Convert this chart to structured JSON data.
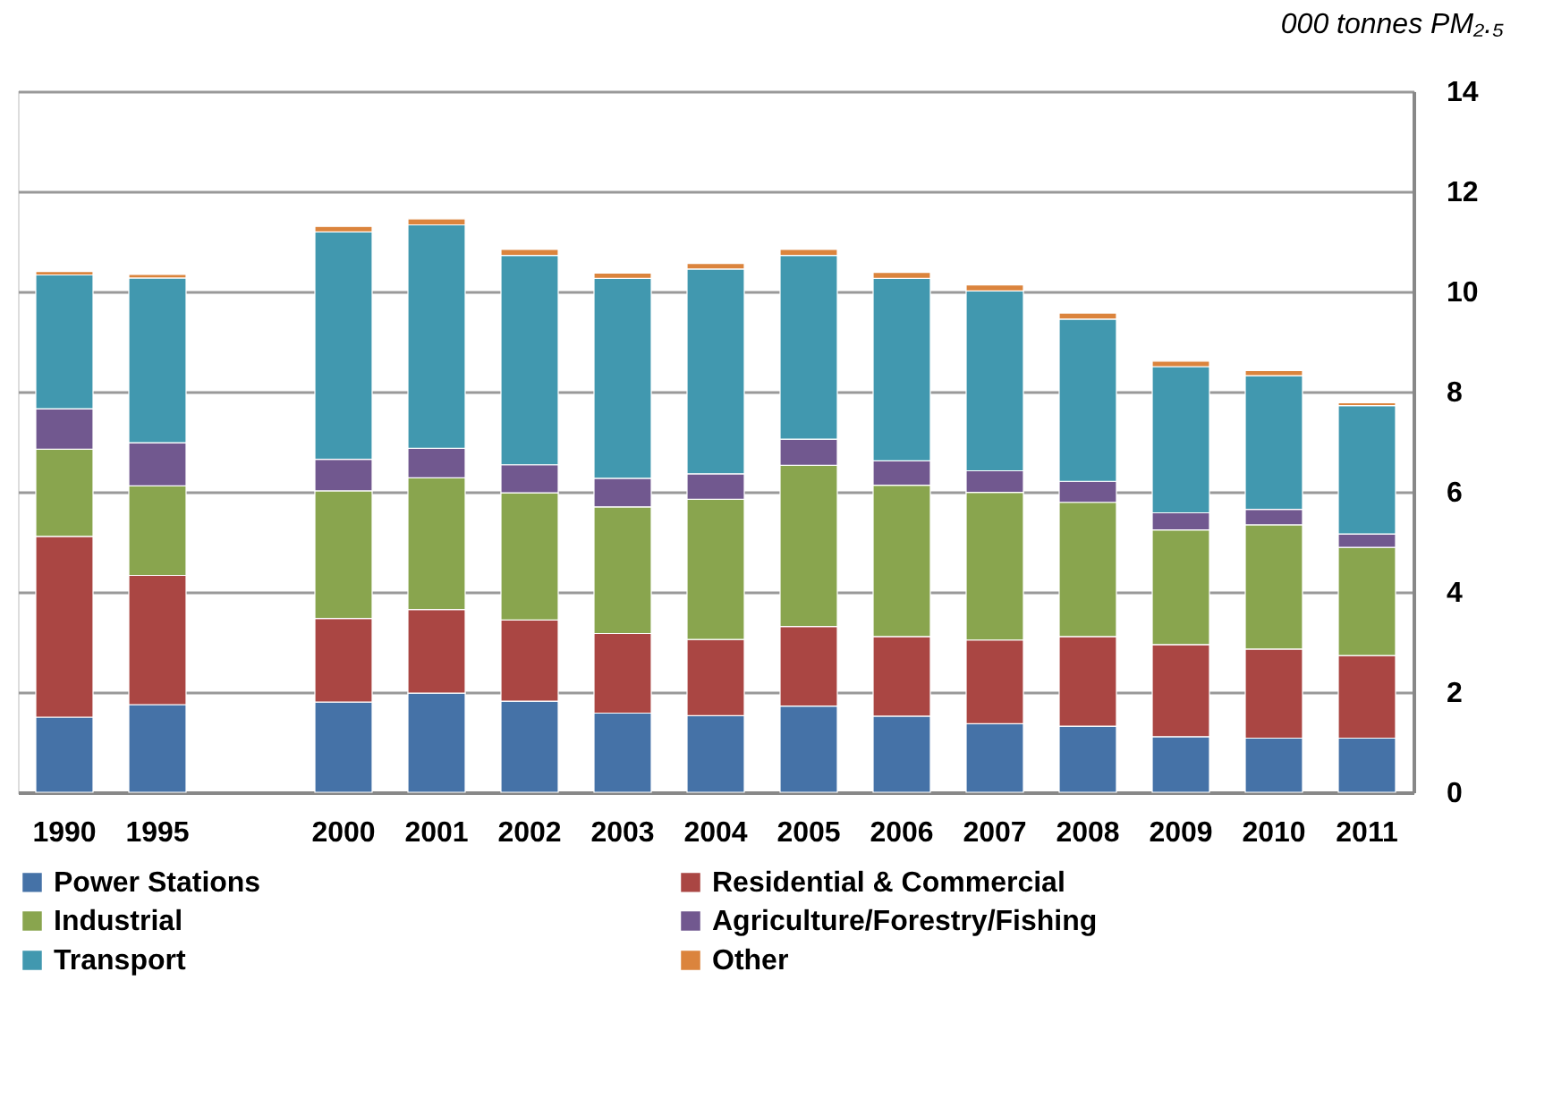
{
  "chart_data": {
    "type": "bar",
    "stacked": true,
    "ylabel": "000 tonnes PM₂.₅",
    "categories": [
      "1990",
      "1995",
      null,
      "2000",
      "2001",
      "2002",
      "2003",
      "2004",
      "2005",
      "2006",
      "2007",
      "2008",
      "2009",
      "2010",
      "2011"
    ],
    "series": [
      {
        "name": "Power Stations",
        "color": "#4572a7",
        "values": [
          1.5,
          1.75,
          null,
          1.8,
          1.98,
          1.82,
          1.58,
          1.53,
          1.72,
          1.52,
          1.37,
          1.32,
          1.11,
          1.08,
          1.08
        ]
      },
      {
        "name": "Residential & Commercial",
        "color": "#aa4643",
        "values": [
          3.61,
          2.58,
          null,
          1.67,
          1.67,
          1.62,
          1.59,
          1.52,
          1.59,
          1.59,
          1.67,
          1.79,
          1.84,
          1.78,
          1.65
        ]
      },
      {
        "name": "Industrial",
        "color": "#89a54e",
        "values": [
          1.74,
          1.79,
          null,
          2.55,
          2.63,
          2.54,
          2.53,
          2.8,
          3.22,
          3.02,
          2.95,
          2.68,
          2.29,
          2.48,
          2.16
        ]
      },
      {
        "name": "Agriculture/Forestry/Fishing",
        "color": "#71588f",
        "values": [
          0.81,
          0.86,
          null,
          0.63,
          0.59,
          0.56,
          0.57,
          0.51,
          0.52,
          0.49,
          0.43,
          0.42,
          0.34,
          0.31,
          0.27
        ]
      },
      {
        "name": "Transport",
        "color": "#4198af",
        "values": [
          2.67,
          3.29,
          null,
          4.54,
          4.46,
          4.18,
          3.99,
          4.09,
          3.67,
          3.64,
          3.59,
          3.24,
          2.92,
          2.67,
          2.56
        ]
      },
      {
        "name": "Other",
        "color": "#db843d",
        "values": [
          0.07,
          0.07,
          null,
          0.11,
          0.12,
          0.12,
          0.11,
          0.11,
          0.12,
          0.12,
          0.12,
          0.12,
          0.11,
          0.1,
          0.06
        ]
      }
    ],
    "ylim": [
      0,
      14
    ],
    "yticks": [
      0,
      2,
      4,
      6,
      8,
      10,
      12,
      14
    ],
    "grid": "y",
    "legend": "bottom"
  }
}
